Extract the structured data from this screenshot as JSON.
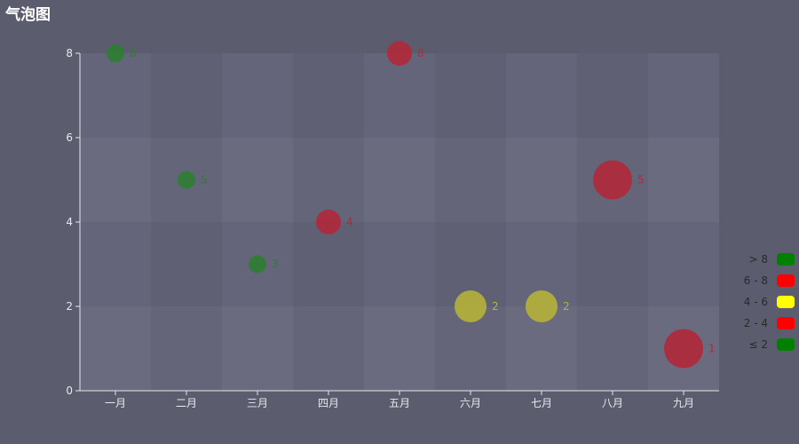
{
  "title": "气泡图",
  "chart_data": {
    "type": "scatter",
    "title": "气泡图",
    "xlabel": "",
    "ylabel": "",
    "categories": [
      "一月",
      "二月",
      "三月",
      "四月",
      "五月",
      "六月",
      "七月",
      "八月",
      "九月"
    ],
    "y_ticks": [
      "0",
      "2",
      "4",
      "6",
      "8"
    ],
    "ylim": [
      0,
      8
    ],
    "grid": "alternating bands",
    "points": [
      {
        "category": "一月",
        "y": 8,
        "size": 1,
        "label": "8",
        "color": "#2e7d32"
      },
      {
        "category": "二月",
        "y": 5,
        "size": 1,
        "label": "5",
        "color": "#2e7d32"
      },
      {
        "category": "三月",
        "y": 3,
        "size": 1,
        "label": "3",
        "color": "#2e7d32"
      },
      {
        "category": "四月",
        "y": 4,
        "size": 2,
        "label": "4",
        "color": "#b0293a"
      },
      {
        "category": "五月",
        "y": 8,
        "size": 2,
        "label": "8",
        "color": "#b0293a"
      },
      {
        "category": "六月",
        "y": 2,
        "size": 3,
        "label": "2",
        "color": "#b5b33a"
      },
      {
        "category": "七月",
        "y": 2,
        "size": 3,
        "label": "2",
        "color": "#b5b33a"
      },
      {
        "category": "八月",
        "y": 5,
        "size": 4,
        "label": "5",
        "color": "#b0293a"
      },
      {
        "category": "九月",
        "y": 1,
        "size": 4,
        "label": "1",
        "color": "#b0293a"
      }
    ],
    "legend": {
      "placement": "right",
      "items": [
        {
          "label": "> 8",
          "color": "#008000"
        },
        {
          "label": "6 - 8",
          "color": "#ff0000"
        },
        {
          "label": "4 - 6",
          "color": "#ffff00"
        },
        {
          "label": "2 - 4",
          "color": "#ff0000"
        },
        {
          "label": "≤ 2",
          "color": "#008000"
        }
      ]
    }
  }
}
